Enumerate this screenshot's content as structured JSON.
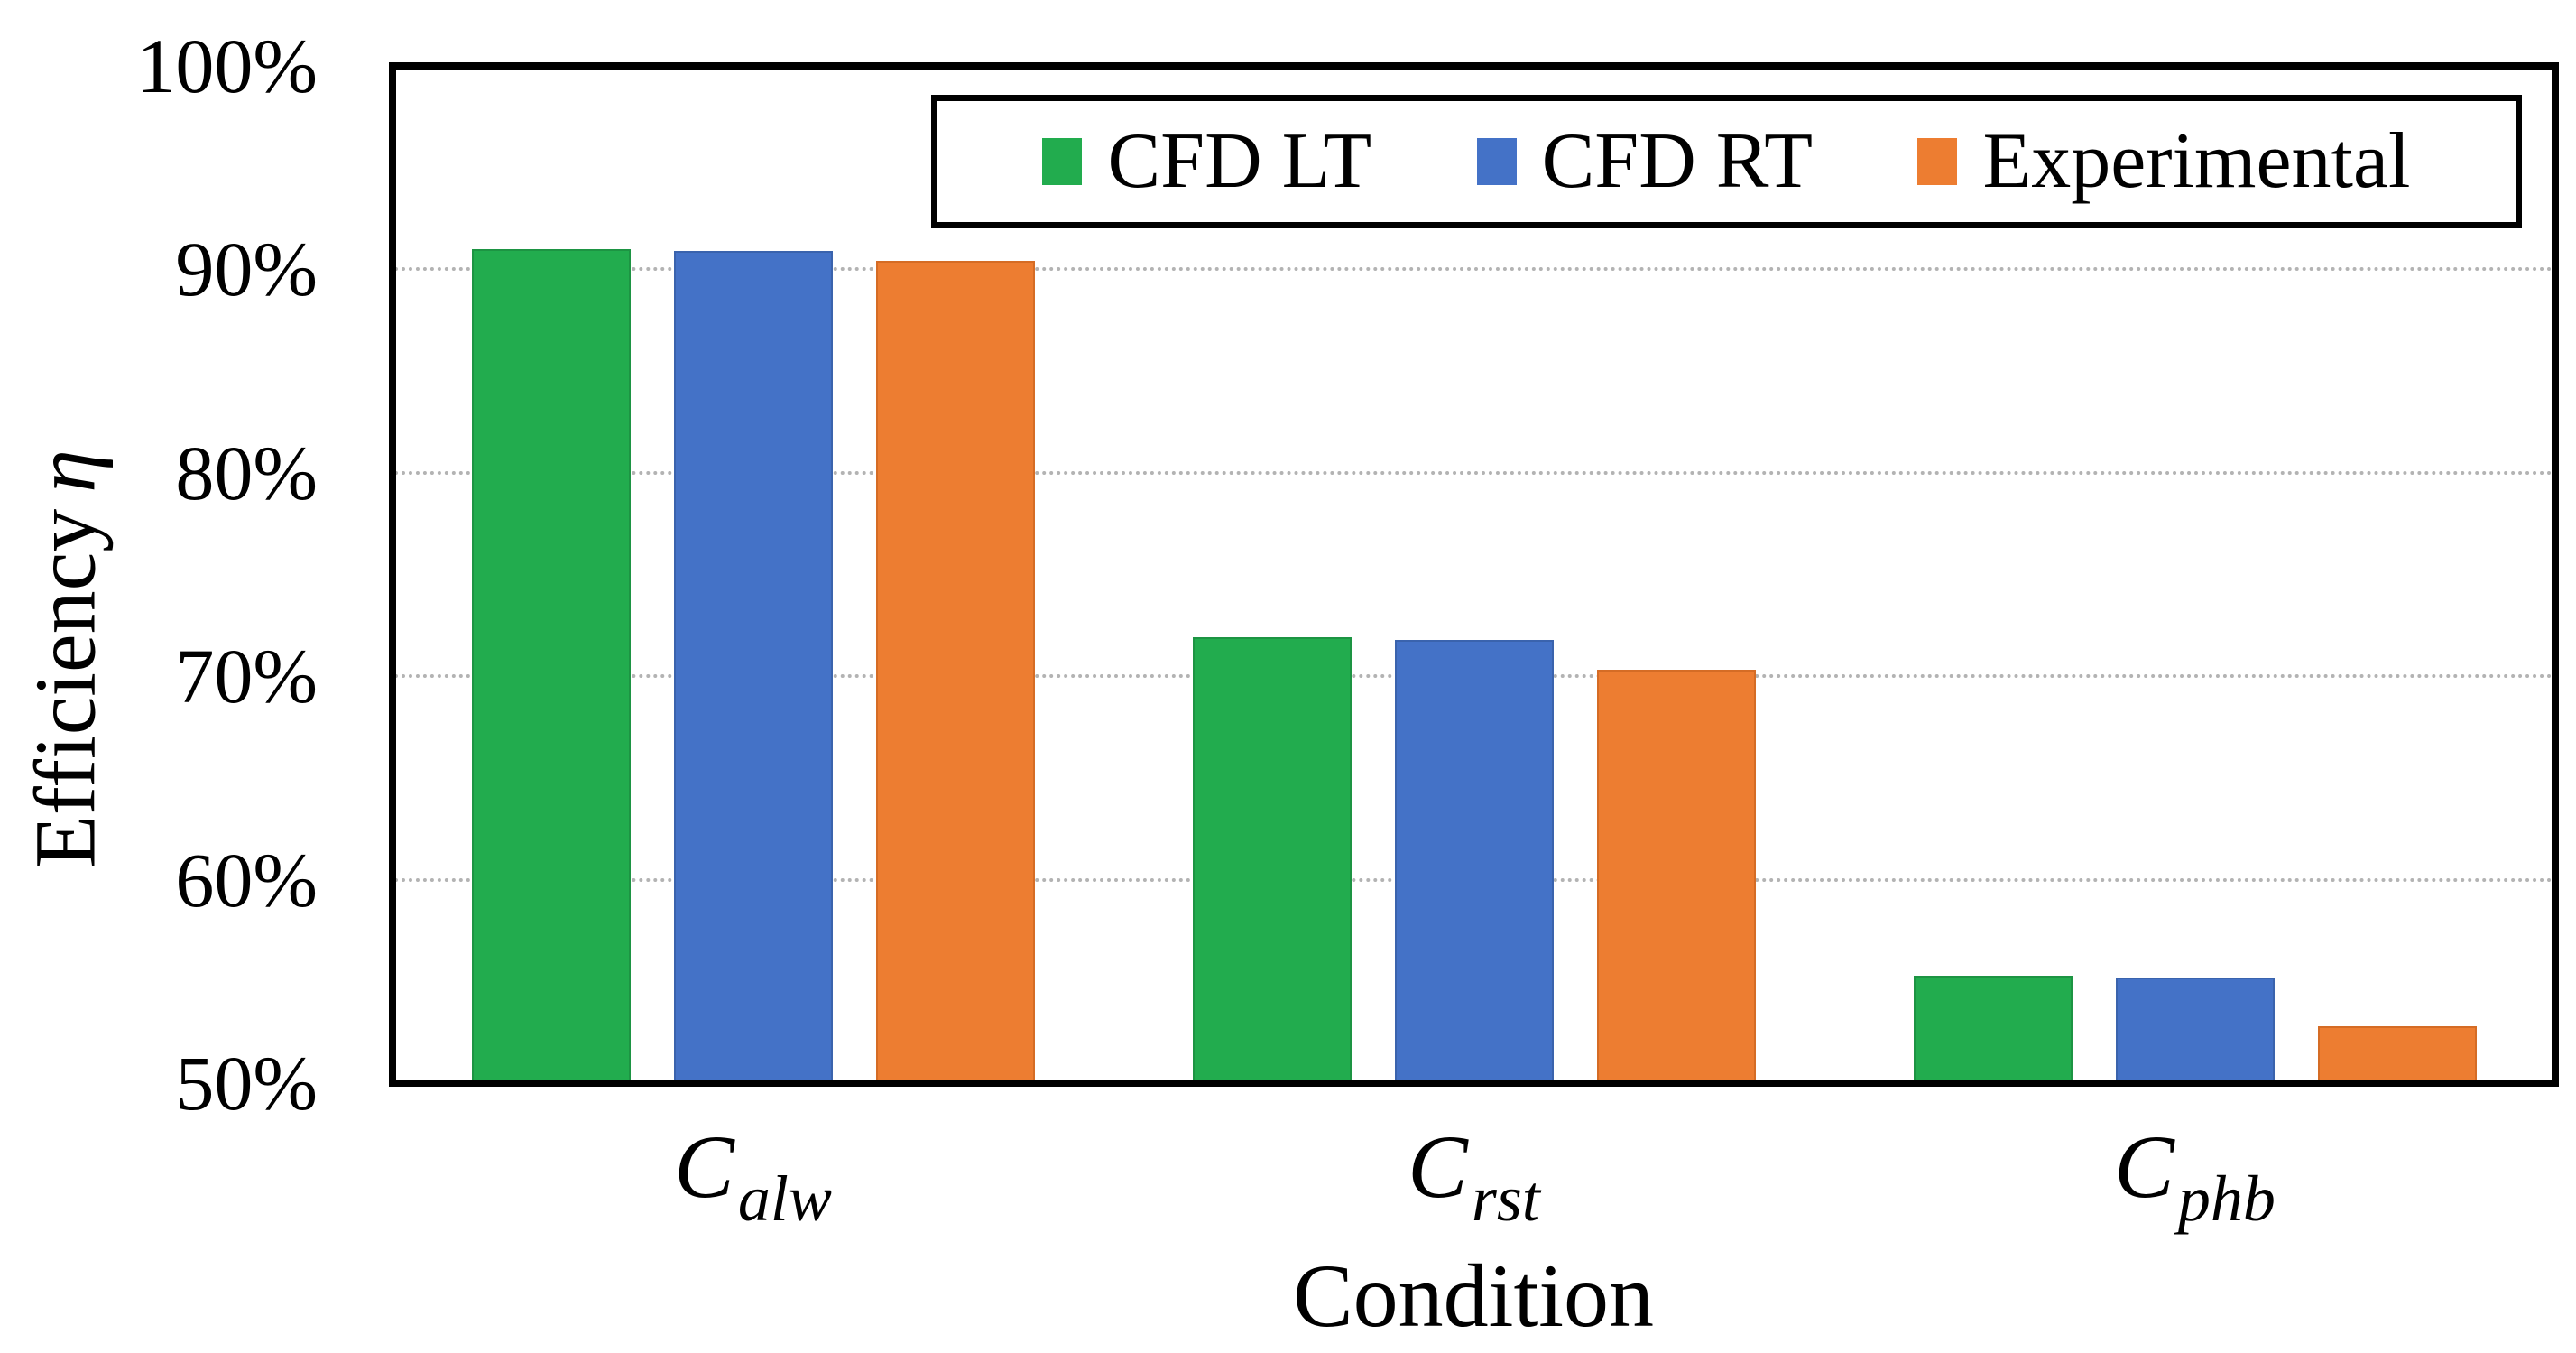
{
  "chart_data": {
    "type": "bar",
    "title": "",
    "xlabel": "Condition",
    "ylabel": "Efficiency η",
    "ylabel_text": "Efficiency",
    "ylabel_symbol": "η",
    "categories": [
      {
        "base": "C",
        "sub": "alw"
      },
      {
        "base": "C",
        "sub": "rst"
      },
      {
        "base": "C",
        "sub": "phb"
      }
    ],
    "series": [
      {
        "name": "CFD LT",
        "color": "#22AC4E",
        "edge": "#1d9443",
        "values": [
          91.0,
          71.9,
          55.3
        ]
      },
      {
        "name": "CFD RT",
        "color": "#4472C7",
        "edge": "#3a63ad",
        "values": [
          90.9,
          71.8,
          55.2
        ]
      },
      {
        "name": "Experimental",
        "color": "#ED7D31",
        "edge": "#d56c25",
        "values": [
          90.4,
          70.3,
          52.8
        ]
      }
    ],
    "ylim": [
      50,
      100
    ],
    "ytick_step": 10,
    "ytick_labels": [
      "50%",
      "60%",
      "70%",
      "80%",
      "90%",
      "100%"
    ],
    "grid": "horizontal-dotted",
    "legend_position": "top-center-inside"
  }
}
